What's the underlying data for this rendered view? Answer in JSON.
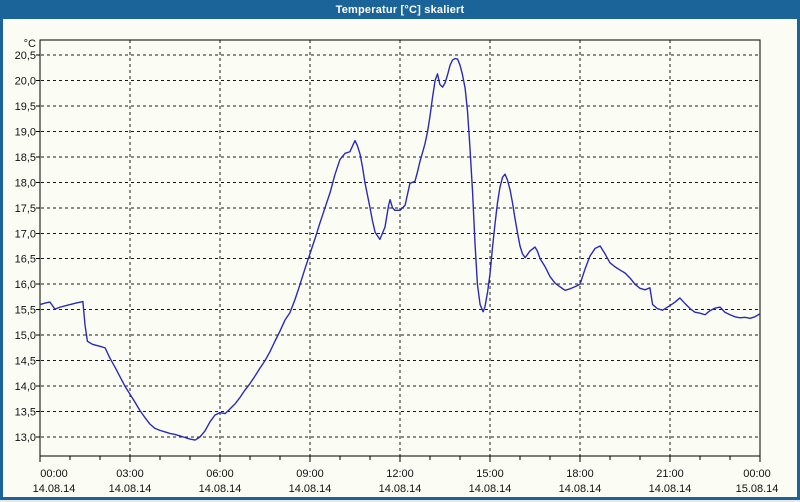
{
  "window": {
    "title": "Temperatur [°C] skaliert",
    "titlebar_color": "#1B649A",
    "border_color": "#1B649A",
    "background_color": "#FBFDF5"
  },
  "chart_data": {
    "type": "line",
    "title": "Temperatur [°C] skaliert",
    "unit_label": "°C",
    "grid": "dashed",
    "grid_color": "#1a1a1a",
    "axis_color": "#000000",
    "xlim_hours": [
      0,
      24
    ],
    "ylim": [
      13.0,
      20.5
    ],
    "x_minor_tick_interval_hours": 1,
    "x_major_tick_interval_hours": 3,
    "y_tick_values": [
      20.5,
      20.0,
      19.5,
      19.0,
      18.5,
      18.0,
      17.5,
      17.0,
      16.5,
      16.0,
      15.5,
      15.0,
      14.5,
      14.0,
      13.5,
      13.0
    ],
    "y_tick_labels": [
      "20,5",
      "20,0",
      "19,5",
      "19,0",
      "18,5",
      "18,0",
      "17,5",
      "17,0",
      "16,5",
      "16,0",
      "15,5",
      "15,0",
      "14,5",
      "14,0",
      "13,5",
      "13,0"
    ],
    "x_ticks": [
      {
        "hour": 0,
        "time": "00:00",
        "date": "14.08.14"
      },
      {
        "hour": 3,
        "time": "03:00",
        "date": "14.08.14"
      },
      {
        "hour": 6,
        "time": "06:00",
        "date": "14.08.14"
      },
      {
        "hour": 9,
        "time": "09:00",
        "date": "14.08.14"
      },
      {
        "hour": 12,
        "time": "12:00",
        "date": "14.08.14"
      },
      {
        "hour": 15,
        "time": "15:00",
        "date": "14.08.14"
      },
      {
        "hour": 18,
        "time": "18:00",
        "date": "14.08.14"
      },
      {
        "hour": 21,
        "time": "21:00",
        "date": "14.08.14"
      },
      {
        "hour": 24,
        "time": "00:00",
        "date": "15.08.14"
      }
    ],
    "series": [
      {
        "name": "Temperatur",
        "color": "#2A2AB8",
        "x_hours": [
          0,
          0.17,
          0.33,
          0.5,
          0.67,
          1.0,
          1.2,
          1.43,
          1.5,
          1.58,
          1.75,
          2.0,
          2.17,
          2.33,
          2.5,
          2.67,
          2.83,
          3.0,
          3.17,
          3.33,
          3.5,
          3.67,
          3.83,
          4.0,
          4.17,
          4.33,
          4.5,
          4.67,
          4.83,
          5.0,
          5.17,
          5.33,
          5.5,
          5.67,
          5.83,
          6.0,
          6.17,
          6.33,
          6.5,
          6.67,
          6.83,
          7.0,
          7.17,
          7.33,
          7.5,
          7.67,
          7.83,
          8.0,
          8.17,
          8.33,
          8.5,
          8.67,
          8.83,
          9.0,
          9.17,
          9.33,
          9.5,
          9.67,
          9.83,
          10.0,
          10.17,
          10.33,
          10.5,
          10.58,
          10.67,
          10.75,
          10.83,
          11.0,
          11.08,
          11.17,
          11.33,
          11.5,
          11.62,
          11.67,
          11.75,
          11.83,
          12.0,
          12.17,
          12.33,
          12.5,
          12.58,
          12.67,
          12.83,
          12.92,
          13.0,
          13.08,
          13.17,
          13.25,
          13.33,
          13.42,
          13.5,
          13.58,
          13.67,
          13.75,
          13.83,
          13.92,
          14.0,
          14.08,
          14.17,
          14.25,
          14.33,
          14.42,
          14.5,
          14.58,
          14.67,
          14.77,
          14.83,
          14.92,
          15.0,
          15.08,
          15.17,
          15.25,
          15.33,
          15.42,
          15.5,
          15.58,
          15.67,
          15.75,
          15.83,
          15.92,
          16.0,
          16.08,
          16.17,
          16.33,
          16.5,
          16.58,
          16.67,
          16.83,
          17.0,
          17.17,
          17.33,
          17.5,
          17.67,
          17.83,
          18.0,
          18.17,
          18.33,
          18.5,
          18.67,
          18.83,
          19.0,
          19.17,
          19.33,
          19.5,
          19.67,
          19.83,
          20.0,
          20.17,
          20.33,
          20.42,
          20.58,
          20.75,
          21.0,
          21.17,
          21.33,
          21.5,
          21.67,
          21.83,
          22.0,
          22.17,
          22.33,
          22.5,
          22.67,
          22.83,
          23.0,
          23.17,
          23.33,
          23.5,
          23.67,
          23.83,
          24.0
        ],
        "y_celsius": [
          15.6,
          15.63,
          15.65,
          15.51,
          15.55,
          15.6,
          15.63,
          15.66,
          15.2,
          14.88,
          14.82,
          14.78,
          14.75,
          14.55,
          14.37,
          14.18,
          14.0,
          13.84,
          13.68,
          13.52,
          13.38,
          13.25,
          13.17,
          13.13,
          13.1,
          13.07,
          13.05,
          13.02,
          12.99,
          12.96,
          12.94,
          13.0,
          13.12,
          13.3,
          13.43,
          13.48,
          13.46,
          13.55,
          13.65,
          13.78,
          13.92,
          14.05,
          14.2,
          14.35,
          14.5,
          14.68,
          14.88,
          15.08,
          15.3,
          15.44,
          15.7,
          16.0,
          16.3,
          16.6,
          16.9,
          17.2,
          17.5,
          17.8,
          18.15,
          18.45,
          18.57,
          18.6,
          18.82,
          18.72,
          18.55,
          18.3,
          18.0,
          17.5,
          17.25,
          17.02,
          16.88,
          17.12,
          17.55,
          17.66,
          17.5,
          17.45,
          17.45,
          17.55,
          17.98,
          18.02,
          18.2,
          18.42,
          18.75,
          19.0,
          19.3,
          19.65,
          20.0,
          20.13,
          19.92,
          19.87,
          19.95,
          20.1,
          20.3,
          20.4,
          20.43,
          20.42,
          20.3,
          20.12,
          19.85,
          19.4,
          18.7,
          17.8,
          16.8,
          16.0,
          15.6,
          15.46,
          15.55,
          15.85,
          16.2,
          16.7,
          17.2,
          17.6,
          17.9,
          18.1,
          18.16,
          18.05,
          17.85,
          17.6,
          17.3,
          17.0,
          16.75,
          16.6,
          16.52,
          16.65,
          16.73,
          16.65,
          16.5,
          16.35,
          16.15,
          16.02,
          15.95,
          15.88,
          15.91,
          15.95,
          16.0,
          16.3,
          16.55,
          16.7,
          16.75,
          16.6,
          16.42,
          16.34,
          16.28,
          16.22,
          16.12,
          16.0,
          15.92,
          15.89,
          15.93,
          15.6,
          15.52,
          15.49,
          15.58,
          15.65,
          15.73,
          15.62,
          15.52,
          15.45,
          15.43,
          15.4,
          15.48,
          15.53,
          15.55,
          15.45,
          15.4,
          15.36,
          15.34,
          15.35,
          15.33,
          15.36,
          15.42
        ]
      }
    ]
  }
}
